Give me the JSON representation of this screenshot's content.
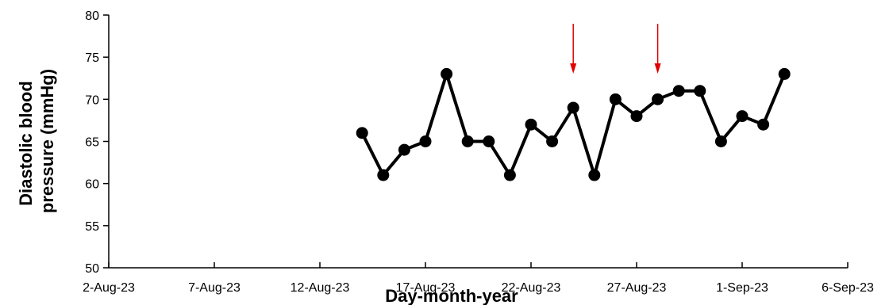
{
  "chart_data": {
    "type": "line",
    "xlabel": "Day-month-year",
    "ylabel_lines": [
      "Diastolic blood",
      "pressure (mmHg)"
    ],
    "x_ticks": [
      "2-Aug-23",
      "7-Aug-23",
      "12-Aug-23",
      "17-Aug-23",
      "22-Aug-23",
      "27-Aug-23",
      "1-Sep-23",
      "6-Sep-23"
    ],
    "xlim": [
      "2023-08-02",
      "2023-09-06"
    ],
    "y_ticks": [
      "50",
      "55",
      "60",
      "65",
      "70",
      "75",
      "80"
    ],
    "ylim": [
      50,
      80
    ],
    "series": [
      {
        "color": "#000000",
        "marker": "circle",
        "x": [
          "2023-08-14",
          "2023-08-15",
          "2023-08-16",
          "2023-08-17",
          "2023-08-18",
          "2023-08-19",
          "2023-08-20",
          "2023-08-21",
          "2023-08-22",
          "2023-08-23",
          "2023-08-24",
          "2023-08-25",
          "2023-08-26",
          "2023-08-27",
          "2023-08-28",
          "2023-08-29",
          "2023-08-30",
          "2023-08-31",
          "2023-09-01",
          "2023-09-02",
          "2023-09-03"
        ],
        "y": [
          66,
          61,
          64,
          65,
          73,
          65,
          65,
          61,
          67,
          65,
          69,
          61,
          70,
          68,
          70,
          71,
          71,
          65,
          68,
          67,
          73
        ]
      }
    ],
    "annotations": [
      {
        "type": "arrow-down",
        "x": "2023-08-24",
        "color": "#e00000"
      },
      {
        "type": "arrow-down",
        "x": "2023-08-28",
        "color": "#e00000"
      }
    ],
    "grid": false,
    "legend": "none"
  }
}
